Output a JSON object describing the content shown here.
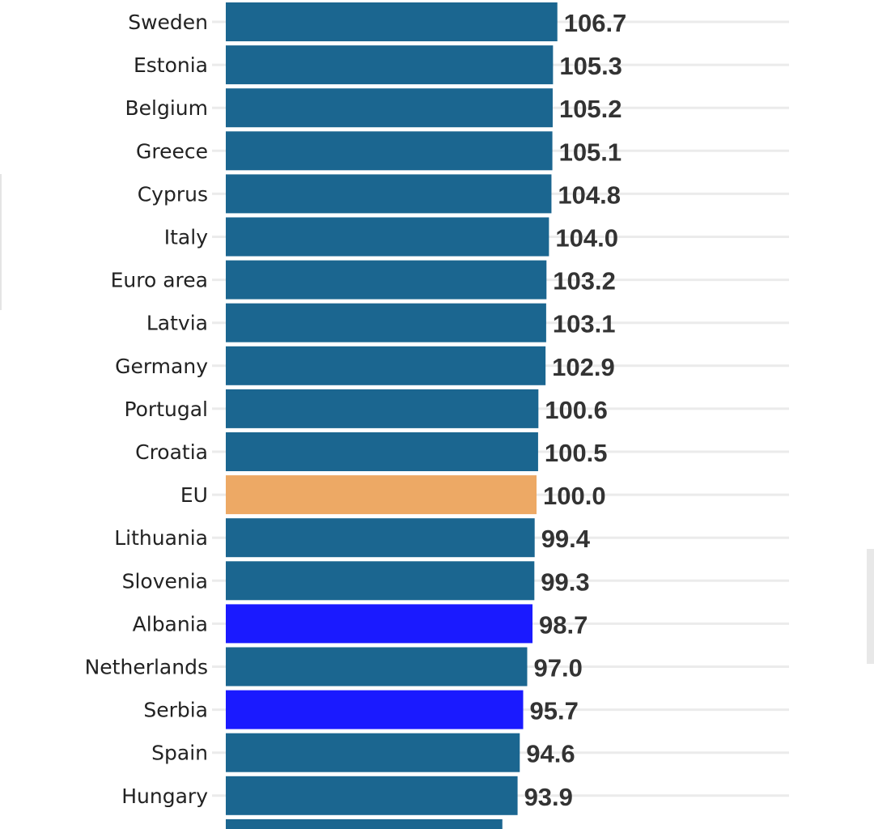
{
  "chart_data": {
    "type": "bar",
    "orientation": "horizontal",
    "categories": [
      "Sweden",
      "Estonia",
      "Belgium",
      "Greece",
      "Cyprus",
      "Italy",
      "Euro area",
      "Latvia",
      "Germany",
      "Portugal",
      "Croatia",
      "EU",
      "Lithuania",
      "Slovenia",
      "Albania",
      "Netherlands",
      "Serbia",
      "Spain",
      "Hungary",
      ""
    ],
    "values": [
      106.7,
      105.3,
      105.2,
      105.1,
      104.8,
      104.0,
      103.2,
      103.1,
      102.9,
      100.6,
      100.5,
      100.0,
      99.4,
      99.3,
      98.7,
      97.0,
      95.7,
      94.6,
      93.9,
      89.0
    ],
    "value_labels": [
      "106.7",
      "105.3",
      "105.2",
      "105.1",
      "104.8",
      "104.0",
      "103.2",
      "103.1",
      "102.9",
      "100.6",
      "100.5",
      "100.0",
      "99.4",
      "99.3",
      "98.7",
      "97.0",
      "95.7",
      "94.6",
      "93.9",
      ""
    ],
    "colors": {
      "default": "#1b6690",
      "EU": "#eda965",
      "Albania": "#1a1aff",
      "Serbia": "#1a1aff"
    },
    "xlim": [
      0,
      180
    ],
    "grid": true,
    "legend": "none"
  }
}
